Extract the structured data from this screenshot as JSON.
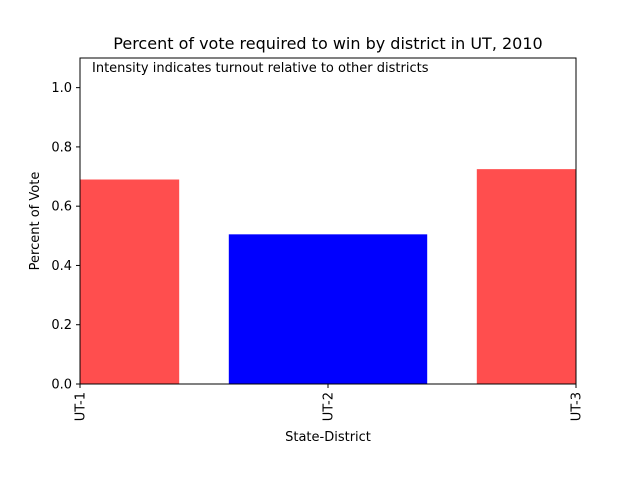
{
  "chart_data": {
    "type": "bar",
    "title": "Percent of vote required to win by district in UT, 2010",
    "annotation": "Intensity indicates turnout relative to other districts",
    "xlabel": "State-District",
    "ylabel": "Percent of Vote",
    "categories": [
      "UT-1",
      "UT-2",
      "UT-3"
    ],
    "values": [
      0.69,
      0.505,
      0.725
    ],
    "bar_colors": [
      "#ff3b3b",
      "#0000ff",
      "#ff3b3b"
    ],
    "bar_opacity": [
      0.9,
      1.0,
      0.9
    ],
    "ylim": [
      0,
      1.1
    ],
    "xlim": [
      0,
      2
    ],
    "y_ticks": [
      "0.0",
      "0.2",
      "0.4",
      "0.6",
      "0.8",
      "1.0"
    ],
    "grid": false
  }
}
